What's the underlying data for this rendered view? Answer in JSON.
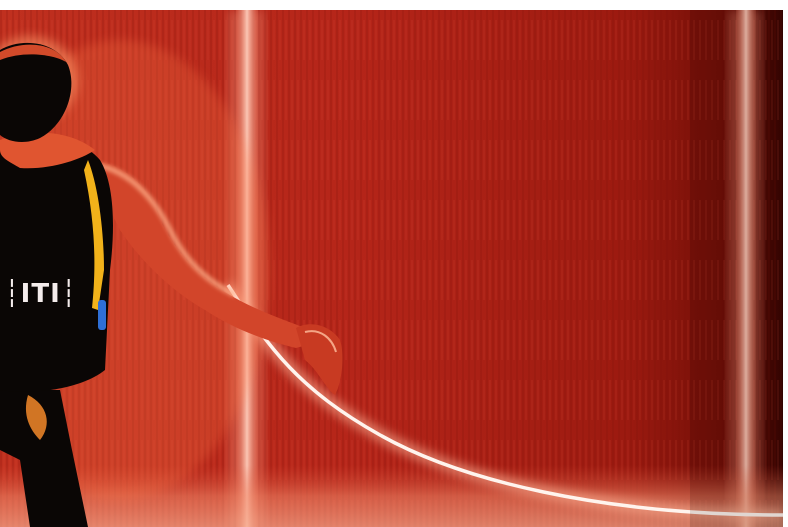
{
  "image": {
    "kind": "photograph",
    "subject": "person-with-glowing-rope",
    "colors": {
      "background_dark": "#5a0a04",
      "background_mid": "#b8261a",
      "background_light": "#e24a32",
      "pillar_glow": "#f4b2a0",
      "rope_glow": "#fff2ea",
      "silhouette": "#0a0605",
      "skin_highlight": "#ff8a5a",
      "strap": "#f2b21a",
      "accent_blue": "#2f6fd6"
    }
  },
  "jersey_text": "┆ITI┆"
}
